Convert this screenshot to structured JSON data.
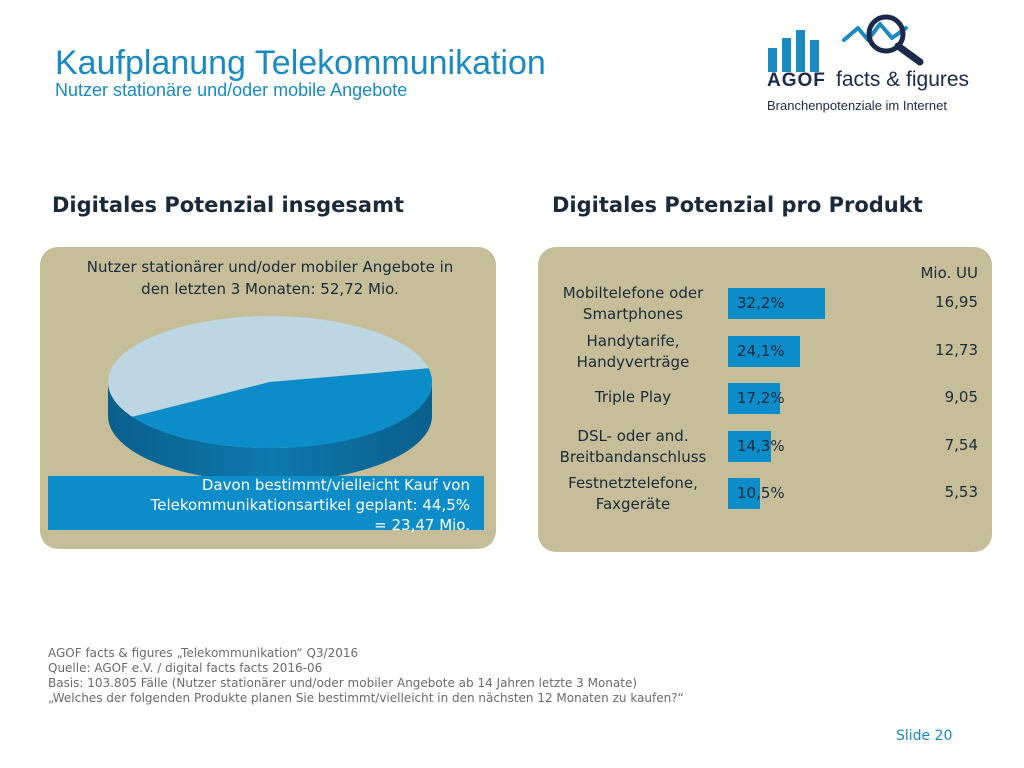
{
  "header": {
    "title": "Kaufplanung Telekommunikation",
    "subtitle": "Nutzer stationäre und/oder mobile Angebote"
  },
  "logo": {
    "brand": "AGOF",
    "product": "facts & figures",
    "tagline": "Branchenpotenziale im Internet",
    "colors": {
      "bars": "#1a8ac0",
      "magnifier": "#1a2a4a"
    }
  },
  "left_panel": {
    "heading": "Digitales Potenzial insgesamt",
    "pie_caption": "Nutzer stationärer und/oder mobiler Angebote in den letzten 3 Monaten: 52,72 Mio.",
    "plan_caption": "Davon bestimmt/vielleicht Kauf von Telekommunikationsartikel geplant: 44,5% = 23,47 Mio."
  },
  "right_panel": {
    "heading": "Digitales Potenzial pro Produkt",
    "unit_label": "Mio. UU"
  },
  "colors": {
    "accent": "#1a8ac0",
    "bar": "#0c8cc8",
    "panel": "#c6be98",
    "pie_plan": "#0c8cc8",
    "pie_rest": "#bcd6e2"
  },
  "chart_data": [
    {
      "type": "pie",
      "title": "Digitales Potenzial insgesamt",
      "slices": [
        {
          "label": "Davon bestimmt/vielleicht Kauf von Telekommunikationsartikel geplant",
          "value": 44.5
        },
        {
          "label": "",
          "value": 55.5
        }
      ],
      "total_label": "52,72 Mio."
    },
    {
      "type": "bar",
      "title": "Digitales Potenzial pro Produkt",
      "orientation": "horizontal",
      "categories": [
        "Mobiltelefone oder Smartphones",
        "Handytarife, Handyverträge",
        "Triple Play",
        "DSL- oder and. Breitbandanschluss",
        "Festnetztelefone, Faxgeräte"
      ],
      "category_lines": [
        [
          "Mobiltelefone oder",
          "Smartphones"
        ],
        [
          "Handytarife,",
          "Handyverträge"
        ],
        [
          "Triple Play"
        ],
        [
          "DSL- oder and.",
          "Breitbandanschluss"
        ],
        [
          "Festnetztelefone,",
          "Faxgeräte"
        ]
      ],
      "values": [
        32.2,
        24.1,
        17.2,
        14.3,
        10.5
      ],
      "value_labels": [
        "32,2%",
        "24,1%",
        "17,2%",
        "14,3%",
        "10,5%"
      ],
      "mio_uu": [
        16.95,
        12.73,
        9.05,
        7.54,
        5.53
      ],
      "mio_uu_labels": [
        "16,95",
        "12,73",
        "9,05",
        "7,54",
        "5,53"
      ],
      "unit": "Mio. UU"
    }
  ],
  "footer": {
    "lines": [
      "AGOF facts & figures „Telekommunikation“ Q3/2016",
      "Quelle: AGOF e.V. / digital facts facts 2016-06",
      "Basis: 103.805 Fälle (Nutzer stationärer und/oder mobiler Angebote ab 14 Jahren letzte 3 Monate)",
      "„Welches der folgenden Produkte planen Sie bestimmt/vielleicht in den nächsten 12 Monaten zu kaufen?“"
    ],
    "slide": "Slide 20"
  }
}
